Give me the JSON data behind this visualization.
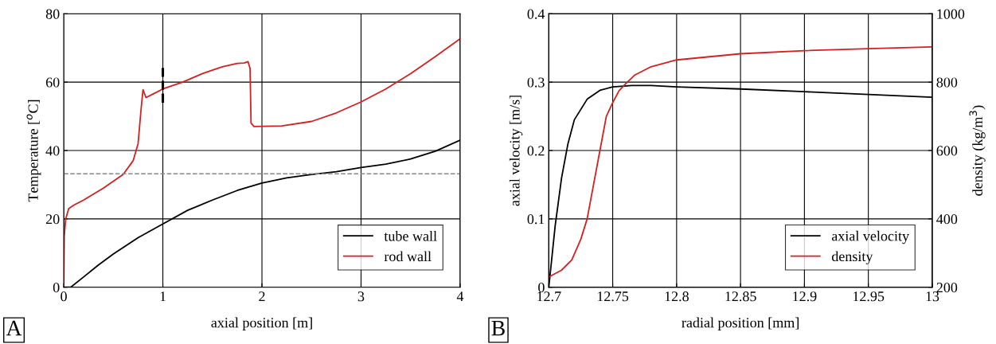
{
  "chart_data": [
    {
      "type": "line",
      "xlabel": "axial position [m]",
      "ylabel": "Temperature [$^{o}$C]",
      "xlim": [
        0,
        4
      ],
      "xticks": [
        0,
        1,
        2,
        3,
        4
      ],
      "ylim": [
        0,
        80
      ],
      "yticks": [
        0,
        20,
        40,
        60,
        80
      ],
      "grid": true,
      "legend": "bottom right",
      "annotations": [
        "A"
      ],
      "ref_lines": [
        {
          "axis": "y",
          "value": 33.2,
          "color": "#888888",
          "line_style": "dashed"
        }
      ],
      "series": [
        {
          "name": "tube wall",
          "color": "#000000",
          "x": [
            0,
            0.07,
            0.2,
            0.35,
            0.5,
            0.75,
            1,
            1.25,
            1.5,
            1.75,
            2,
            2.25,
            2.5,
            2.75,
            3,
            3.25,
            3.5,
            3.75,
            4
          ],
          "values": [
            0,
            0,
            3,
            6.5,
            9.7,
            14.5,
            18.5,
            22.5,
            25.5,
            28.3,
            30.5,
            32,
            33,
            33.8,
            35,
            36,
            37.5,
            39.8,
            43
          ]
        },
        {
          "name": "rod wall",
          "color": "#d62020",
          "x": [
            0,
            0.005,
            0.02,
            0.05,
            0.1,
            0.2,
            0.4,
            0.6,
            0.7,
            0.75,
            0.78,
            0.8,
            0.83,
            0.9,
            1,
            1.2,
            1.4,
            1.6,
            1.75,
            1.82,
            1.86,
            1.88,
            1.89,
            1.92,
            2.2,
            2.5,
            2.75,
            3,
            3.25,
            3.5,
            3.75,
            4
          ],
          "values": [
            0,
            15,
            20,
            23,
            24,
            25.5,
            29,
            33,
            37,
            42,
            52,
            57.8,
            55.5,
            56.5,
            58,
            60,
            62.5,
            64.5,
            65.5,
            65.6,
            66,
            64,
            48,
            47,
            47.2,
            48.5,
            51,
            54.2,
            58,
            62.5,
            67.5,
            72.7
          ]
        },
        {
          "color": "#000000",
          "line_style": "dashed",
          "x": [
            1,
            1
          ],
          "values": [
            54,
            65
          ]
        }
      ]
    },
    {
      "type": "line",
      "xlabel": "radial position [mm]",
      "ylabel": "axial velocity [m/s]",
      "y2label": "density (kg/m$^{3}$)",
      "xlim": [
        12.7,
        13
      ],
      "xticks": [
        12.7,
        12.75,
        12.8,
        12.85,
        12.9,
        12.95,
        13
      ],
      "ylim": [
        0,
        0.4
      ],
      "yticks": [
        0,
        0.1,
        0.2,
        0.3,
        0.4
      ],
      "y2lim": [
        200,
        1000
      ],
      "y2ticks": [
        200,
        400,
        600,
        800,
        1000
      ],
      "grid": true,
      "legend": "bottom right",
      "annotations": [
        "B"
      ],
      "series": [
        {
          "name": "axial velocity",
          "color": "#000000",
          "x": [
            12.7,
            12.705,
            12.71,
            12.715,
            12.72,
            12.73,
            12.74,
            12.75,
            12.765,
            12.78,
            12.8,
            12.85,
            12.9,
            12.95,
            13
          ],
          "values": [
            0,
            0.09,
            0.16,
            0.21,
            0.245,
            0.275,
            0.288,
            0.293,
            0.295,
            0.295,
            0.293,
            0.29,
            0.286,
            0.282,
            0.278
          ]
        },
        {
          "name": "density",
          "color": "#d62020",
          "axis": "y2",
          "x": [
            12.7,
            12.71,
            12.718,
            12.725,
            12.73,
            12.735,
            12.74,
            12.745,
            12.75,
            12.755,
            12.76,
            12.767,
            12.78,
            12.8,
            12.85,
            12.9,
            12.95,
            13
          ],
          "values": [
            230,
            250,
            280,
            340,
            400,
            500,
            600,
            700,
            740,
            775,
            795,
            820,
            845,
            865,
            883,
            892,
            898,
            903
          ]
        }
      ]
    }
  ]
}
